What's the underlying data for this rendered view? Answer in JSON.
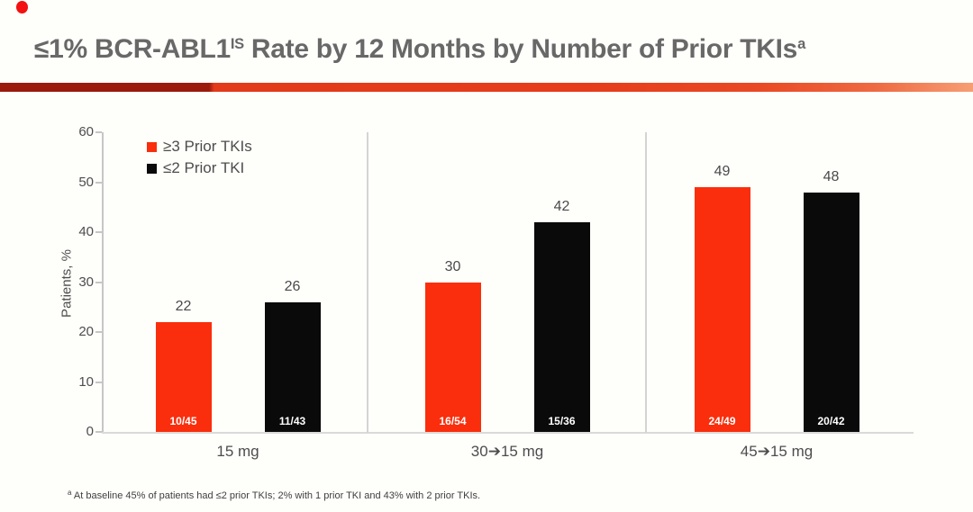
{
  "slide": {
    "title": {
      "prefix": "≤1% BCR-ABL1",
      "sup1": "IS",
      "mid": " Rate by 12 Months by Number of Prior TKIs",
      "sup2": "a"
    },
    "footnote": {
      "sup": "a",
      "text": " At baseline 45% of patients had ≤2 prior TKIs; 2% with 1 prior TKI and 43% with 2 prior TKIs."
    },
    "decorations": {
      "top_dot_color": "#f31111",
      "accent_rule_colors": [
        "#9b1a0c",
        "#e63c1b",
        "#f79e74"
      ]
    }
  },
  "chart_data": {
    "type": "bar",
    "title": "≤1% BCR-ABL1(IS) Rate by 12 Months by Number of Prior TKIs",
    "xlabel": "",
    "ylabel": "Patients, %",
    "ylim": [
      0,
      60
    ],
    "yticks": [
      0,
      10,
      20,
      30,
      40,
      50,
      60
    ],
    "grid": false,
    "legend_position": "top-left",
    "categories": [
      "15 mg",
      "30➔15 mg",
      "45➔15 mg"
    ],
    "series": [
      {
        "name": "≥3 Prior TKIs",
        "color": "#fa2e0c",
        "values": [
          22,
          30,
          49
        ],
        "bar_labels": [
          "10/45",
          "16/54",
          "24/49"
        ]
      },
      {
        "name": "≤2 Prior TKI",
        "color": "#0a0a0a",
        "values": [
          26,
          42,
          48
        ],
        "bar_labels": [
          "11/43",
          "15/36",
          "20/42"
        ]
      }
    ]
  }
}
